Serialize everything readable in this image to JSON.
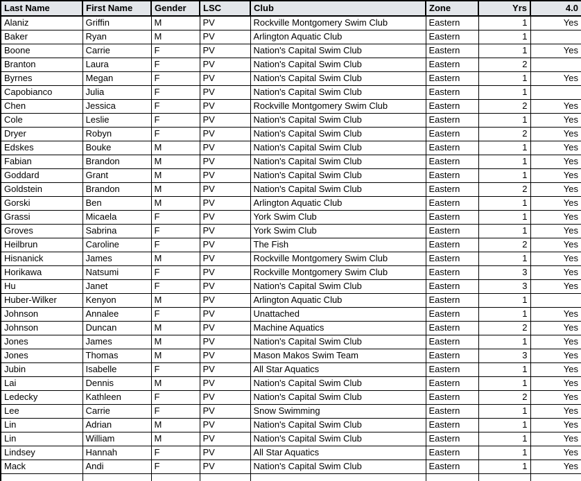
{
  "table": {
    "columns": [
      {
        "key": "last_name",
        "label": "Last Name",
        "align": "left"
      },
      {
        "key": "first_name",
        "label": "First Name",
        "align": "left"
      },
      {
        "key": "gender",
        "label": "Gender",
        "align": "left"
      },
      {
        "key": "lsc",
        "label": "LSC",
        "align": "left"
      },
      {
        "key": "club",
        "label": "Club",
        "align": "left"
      },
      {
        "key": "zone",
        "label": "Zone",
        "align": "left"
      },
      {
        "key": "yrs",
        "label": "Yrs",
        "align": "right"
      },
      {
        "key": "four_point_o",
        "label": "4.0",
        "align": "right"
      }
    ],
    "rows": [
      [
        "Alaniz",
        "Griffin",
        "M",
        "PV",
        "Rockville Montgomery Swim Club",
        "Eastern",
        "1",
        "Yes"
      ],
      [
        "Baker",
        "Ryan",
        "M",
        "PV",
        "Arlington Aquatic Club",
        "Eastern",
        "1",
        ""
      ],
      [
        "Boone",
        "Carrie",
        "F",
        "PV",
        "Nation's Capital Swim Club",
        "Eastern",
        "1",
        "Yes"
      ],
      [
        "Branton",
        "Laura",
        "F",
        "PV",
        "Nation's Capital Swim Club",
        "Eastern",
        "2",
        ""
      ],
      [
        "Byrnes",
        "Megan",
        "F",
        "PV",
        "Nation's Capital Swim Club",
        "Eastern",
        "1",
        "Yes"
      ],
      [
        "Capobianco",
        "Julia",
        "F",
        "PV",
        "Nation's Capital Swim Club",
        "Eastern",
        "1",
        ""
      ],
      [
        "Chen",
        "Jessica",
        "F",
        "PV",
        "Rockville Montgomery Swim Club",
        "Eastern",
        "2",
        "Yes"
      ],
      [
        "Cole",
        "Leslie",
        "F",
        "PV",
        "Nation's Capital Swim Club",
        "Eastern",
        "1",
        "Yes"
      ],
      [
        "Dryer",
        "Robyn",
        "F",
        "PV",
        "Nation's Capital Swim Club",
        "Eastern",
        "2",
        "Yes"
      ],
      [
        "Edskes",
        "Bouke",
        "M",
        "PV",
        "Nation's Capital Swim Club",
        "Eastern",
        "1",
        "Yes"
      ],
      [
        "Fabian",
        "Brandon",
        "M",
        "PV",
        "Nation's Capital Swim Club",
        "Eastern",
        "1",
        "Yes"
      ],
      [
        "Goddard",
        "Grant",
        "M",
        "PV",
        "Nation's Capital Swim Club",
        "Eastern",
        "1",
        "Yes"
      ],
      [
        "Goldstein",
        "Brandon",
        "M",
        "PV",
        "Nation's Capital Swim Club",
        "Eastern",
        "2",
        "Yes"
      ],
      [
        "Gorski",
        "Ben",
        "M",
        "PV",
        "Arlington Aquatic Club",
        "Eastern",
        "1",
        "Yes"
      ],
      [
        "Grassi",
        "Micaela",
        "F",
        "PV",
        "York Swim Club",
        "Eastern",
        "1",
        "Yes"
      ],
      [
        "Groves",
        "Sabrina",
        "F",
        "PV",
        "York Swim Club",
        "Eastern",
        "1",
        "Yes"
      ],
      [
        "Heilbrun",
        "Caroline",
        "F",
        "PV",
        "The Fish",
        "Eastern",
        "2",
        "Yes"
      ],
      [
        "Hisnanick",
        "James",
        "M",
        "PV",
        "Rockville Montgomery Swim Club",
        "Eastern",
        "1",
        "Yes"
      ],
      [
        "Horikawa",
        "Natsumi",
        "F",
        "PV",
        "Rockville Montgomery Swim Club",
        "Eastern",
        "3",
        "Yes"
      ],
      [
        "Hu",
        "Janet",
        "F",
        "PV",
        "Nation's Capital Swim Club",
        "Eastern",
        "3",
        "Yes"
      ],
      [
        "Huber-Wilker",
        "Kenyon",
        "M",
        "PV",
        "Arlington Aquatic Club",
        "Eastern",
        "1",
        ""
      ],
      [
        "Johnson",
        "Annalee",
        "F",
        "PV",
        "Unattached",
        "Eastern",
        "1",
        "Yes"
      ],
      [
        "Johnson",
        "Duncan",
        "M",
        "PV",
        "Machine Aquatics",
        "Eastern",
        "2",
        "Yes"
      ],
      [
        "Jones",
        "James",
        "M",
        "PV",
        "Nation's Capital Swim Club",
        "Eastern",
        "1",
        "Yes"
      ],
      [
        "Jones",
        "Thomas",
        "M",
        "PV",
        "Mason Makos Swim Team",
        "Eastern",
        "3",
        "Yes"
      ],
      [
        "Jubin",
        "Isabelle",
        "F",
        "PV",
        "All Star Aquatics",
        "Eastern",
        "1",
        "Yes"
      ],
      [
        "Lai",
        "Dennis",
        "M",
        "PV",
        "Nation's Capital Swim Club",
        "Eastern",
        "1",
        "Yes"
      ],
      [
        "Ledecky",
        "Kathleen",
        "F",
        "PV",
        "Nation's Capital Swim Club",
        "Eastern",
        "2",
        "Yes"
      ],
      [
        "Lee",
        "Carrie",
        "F",
        "PV",
        "Snow Swimming",
        "Eastern",
        "1",
        "Yes"
      ],
      [
        "Lin",
        "Adrian",
        "M",
        "PV",
        "Nation's Capital Swim Club",
        "Eastern",
        "1",
        "Yes"
      ],
      [
        "Lin",
        "William",
        "M",
        "PV",
        "Nation's Capital Swim Club",
        "Eastern",
        "1",
        "Yes"
      ],
      [
        "Lindsey",
        "Hannah",
        "F",
        "PV",
        "All Star Aquatics",
        "Eastern",
        "1",
        "Yes"
      ],
      [
        "Mack",
        "Andi",
        "F",
        "PV",
        "Nation's Capital Swim Club",
        "Eastern",
        "1",
        "Yes"
      ]
    ],
    "partial_row": [
      "",
      "",
      "",
      "",
      "",
      "",
      "",
      ""
    ],
    "colors": {
      "header_bg": "#e3e6ea",
      "border": "#000000",
      "row_bg": "#ffffff",
      "text": "#000000"
    }
  }
}
